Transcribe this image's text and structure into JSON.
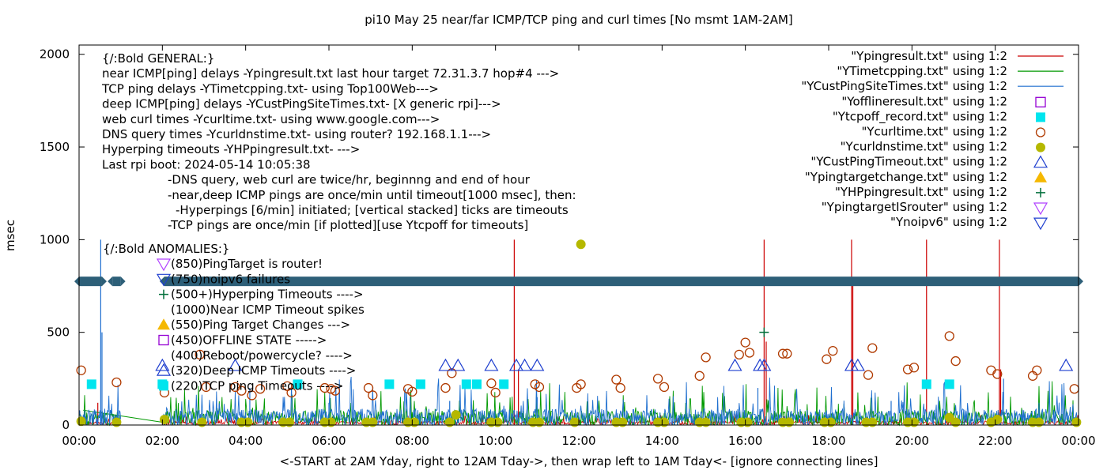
{
  "chart_data": {
    "type": "line",
    "title": "pi10 May 25  near/far ICMP/TCP ping and curl times [No msmt 1AM-2AM]",
    "xlabel": "<-START at 2AM Yday, right to 12AM Tday->, then wrap left to 1AM Tday<- [ignore connecting lines]",
    "ylabel": "msec",
    "xlim": [
      0,
      24
    ],
    "ylim": [
      0,
      2050
    ],
    "xtick_labels": [
      "00:00",
      "02:00",
      "04:00",
      "06:00",
      "08:00",
      "10:00",
      "12:00",
      "14:00",
      "16:00",
      "18:00",
      "20:00",
      "22:00",
      "00:00"
    ],
    "ytick_labels": [
      "0",
      "500",
      "1000",
      "1500",
      "2000"
    ],
    "grid": false,
    "legend_position": "top-right",
    "annotation_lines": [
      "{/:Bold GENERAL:}",
      "near ICMP[ping] delays -Ypingresult.txt last hour target 72.31.3.7 hop#4 --->",
      "TCP ping delays -YTimetcpping.txt- using Top100Web--->",
      "deep ICMP[ping] delays -YCustPingSiteTimes.txt- [X generic rpi]--->",
      "web curl times -Ycurltime.txt- using www.google.com--->",
      "DNS query times -Ycurldnstime.txt- using router? 192.168.1.1--->",
      "Hyperping timeouts -YHPpingresult.txt- --->",
      "Last rpi boot: 2024-05-14 10:05:38",
      "-DNS query, web curl are twice/hr, beginnng and end of hour",
      "-near,deep ICMP pings are once/min until timeout[1000 msec], then:",
      "-Hyperpings [6/min] initiated; [vertical stacked] ticks are timeouts",
      "-TCP pings are once/min [if plotted][use Ytcpoff for timeouts]"
    ],
    "anomalies_header": "{/:Bold ANOMALIES:}",
    "anomalies": [
      {
        "marker": "tri_down_violet",
        "text": "(850)PingTarget is router!"
      },
      {
        "marker": "tri_down_blue",
        "text": "(750)noipv6 failures"
      },
      {
        "marker": "plus_green",
        "text": "(500+)Hyperping Timeouts ---->"
      },
      {
        "marker": "none",
        "text": "(1000)Near ICMP Timeout spikes"
      },
      {
        "marker": "tri_up_gold",
        "text": "(550)Ping Target Changes --->"
      },
      {
        "marker": "square_purple",
        "text": "(450)OFFLINE STATE ----->"
      },
      {
        "marker": "none",
        "text": "(400)Reboot/powercycle? ---->"
      },
      {
        "marker": "tri_up_blue",
        "text": "(320)Deep ICMP Timeouts ---->"
      },
      {
        "marker": "square_cyan",
        "text": "(220)TCP ping Timeouts ---->"
      }
    ],
    "series": [
      {
        "name": "\"Ypingresult.txt\" using 1:2",
        "style": "line",
        "color": "#cc0000",
        "baseline": 12,
        "spikes": [
          [
            0.45,
            120
          ],
          [
            2.1,
            60
          ],
          [
            10.45,
            1000
          ],
          [
            10.55,
            300
          ],
          [
            16.45,
            1000
          ],
          [
            16.5,
            450
          ],
          [
            18.55,
            1000
          ],
          [
            18.58,
            750
          ],
          [
            20.35,
            1000
          ],
          [
            22.1,
            1000
          ],
          [
            22.13,
            300
          ]
        ]
      },
      {
        "name": "\"YTimetcpping.txt\" using 1:2",
        "style": "line",
        "color": "#009900",
        "baseline": 35,
        "segments": [
          [
            [
              0.1,
              80
            ],
            [
              2.0,
              15
            ]
          ]
        ]
      },
      {
        "name": "\"YCustPingSiteTimes.txt\" using 1:2",
        "style": "line",
        "color": "#1f6fcf",
        "baseline": 40,
        "spikes": [
          [
            0.52,
            1000
          ],
          [
            0.55,
            500
          ],
          [
            4.1,
            200
          ],
          [
            6.0,
            120
          ],
          [
            8.9,
            130
          ],
          [
            11.0,
            150
          ],
          [
            16.3,
            200
          ],
          [
            19.5,
            130
          ],
          [
            22.2,
            250
          ]
        ]
      },
      {
        "name": "\"Yofflineresult.txt\" using 1:2",
        "style": "open_square",
        "color": "#9400d3",
        "points": []
      },
      {
        "name": "\"Ytcpoff_record.txt\" using 1:2",
        "style": "filled_square",
        "color": "#00e5ee",
        "points": [
          [
            0.3,
            220
          ],
          [
            2.0,
            220
          ],
          [
            5.25,
            220
          ],
          [
            7.45,
            220
          ],
          [
            8.2,
            220
          ],
          [
            9.3,
            220
          ],
          [
            9.55,
            220
          ],
          [
            10.2,
            220
          ],
          [
            20.35,
            220
          ],
          [
            20.9,
            220
          ]
        ]
      },
      {
        "name": "\"Ycurltime.txt\" using 1:2",
        "style": "open_circle",
        "color": "#b03a00",
        "points": [
          [
            0.05,
            295
          ],
          [
            0.9,
            230
          ],
          [
            2.05,
            175
          ],
          [
            2.9,
            380
          ],
          [
            3.05,
            205
          ],
          [
            3.75,
            205
          ],
          [
            3.9,
            185
          ],
          [
            4.15,
            160
          ],
          [
            4.35,
            195
          ],
          [
            5.0,
            210
          ],
          [
            5.1,
            175
          ],
          [
            5.9,
            200
          ],
          [
            6.05,
            195
          ],
          [
            6.15,
            185
          ],
          [
            6.95,
            200
          ],
          [
            7.05,
            160
          ],
          [
            7.9,
            195
          ],
          [
            8.0,
            180
          ],
          [
            8.8,
            200
          ],
          [
            8.95,
            280
          ],
          [
            9.9,
            225
          ],
          [
            10.0,
            175
          ],
          [
            10.95,
            220
          ],
          [
            11.05,
            205
          ],
          [
            11.95,
            200
          ],
          [
            12.05,
            220
          ],
          [
            12.9,
            245
          ],
          [
            13.0,
            200
          ],
          [
            13.9,
            250
          ],
          [
            14.05,
            205
          ],
          [
            14.9,
            265
          ],
          [
            15.05,
            365
          ],
          [
            15.85,
            380
          ],
          [
            16.0,
            445
          ],
          [
            16.1,
            390
          ],
          [
            16.9,
            385
          ],
          [
            17.0,
            385
          ],
          [
            17.95,
            355
          ],
          [
            18.1,
            400
          ],
          [
            18.95,
            270
          ],
          [
            19.05,
            415
          ],
          [
            19.9,
            300
          ],
          [
            20.05,
            310
          ],
          [
            20.9,
            480
          ],
          [
            21.05,
            345
          ],
          [
            21.9,
            295
          ],
          [
            22.05,
            275
          ],
          [
            22.9,
            265
          ],
          [
            23.0,
            295
          ],
          [
            23.9,
            195
          ]
        ]
      },
      {
        "name": "\"Ycurldnstime.txt\" using 1:2",
        "style": "filled_circle",
        "color": "#b5b800",
        "points": [
          [
            0.05,
            20
          ],
          [
            0.9,
            15
          ],
          [
            2.05,
            30
          ],
          [
            2.95,
            15
          ],
          [
            3.9,
            15
          ],
          [
            4.05,
            15
          ],
          [
            4.9,
            15
          ],
          [
            5.05,
            15
          ],
          [
            5.9,
            15
          ],
          [
            6.05,
            15
          ],
          [
            6.9,
            15
          ],
          [
            7.05,
            15
          ],
          [
            7.9,
            15
          ],
          [
            8.05,
            15
          ],
          [
            8.9,
            15
          ],
          [
            9.05,
            55
          ],
          [
            9.9,
            15
          ],
          [
            10.05,
            15
          ],
          [
            10.9,
            15
          ],
          [
            11.05,
            15
          ],
          [
            11.9,
            15
          ],
          [
            12.05,
            975
          ],
          [
            12.9,
            15
          ],
          [
            13.05,
            15
          ],
          [
            13.9,
            15
          ],
          [
            14.05,
            15
          ],
          [
            14.9,
            15
          ],
          [
            15.05,
            15
          ],
          [
            15.9,
            15
          ],
          [
            16.05,
            15
          ],
          [
            16.9,
            15
          ],
          [
            17.05,
            15
          ],
          [
            17.9,
            15
          ],
          [
            18.05,
            15
          ],
          [
            18.9,
            15
          ],
          [
            19.05,
            15
          ],
          [
            19.9,
            15
          ],
          [
            20.05,
            15
          ],
          [
            20.9,
            40
          ],
          [
            21.05,
            15
          ],
          [
            21.9,
            15
          ],
          [
            22.05,
            30
          ],
          [
            22.9,
            15
          ],
          [
            23.05,
            15
          ],
          [
            23.95,
            15
          ]
        ]
      },
      {
        "name": "\"YCustPingTimeout.txt\" using 1:2",
        "style": "open_triangle_up",
        "color": "#1f3fcf",
        "points": [
          [
            2.0,
            320
          ],
          [
            3.75,
            320
          ],
          [
            8.8,
            320
          ],
          [
            9.1,
            320
          ],
          [
            9.9,
            320
          ],
          [
            10.5,
            320
          ],
          [
            10.7,
            320
          ],
          [
            11.0,
            320
          ],
          [
            15.75,
            320
          ],
          [
            16.35,
            320
          ],
          [
            16.45,
            320
          ],
          [
            18.55,
            320
          ],
          [
            18.7,
            320
          ],
          [
            23.7,
            320
          ]
        ]
      },
      {
        "name": "\"Ypingtargetchange.txt\" using 1:2",
        "style": "filled_triangle_up",
        "color": "#f5b800",
        "points": []
      },
      {
        "name": "\"YHPpingresult.txt\" using 1:2",
        "style": "plus",
        "color": "#006f3a",
        "points": [
          [
            16.45,
            500
          ]
        ]
      },
      {
        "name": "\"YpingtargetISrouter\" using 1:2",
        "style": "open_triangle_down",
        "color": "#b040ff",
        "points": []
      },
      {
        "name": "\"Ynoipv6\" using 1:2",
        "style": "open_triangle_down",
        "color": "#1f3fcf",
        "dense_band": {
          "y": 775,
          "segments": [
            [
              0.0,
              0.55
            ],
            [
              0.8,
              1.0
            ],
            [
              2.05,
              24.0
            ]
          ]
        }
      }
    ]
  }
}
